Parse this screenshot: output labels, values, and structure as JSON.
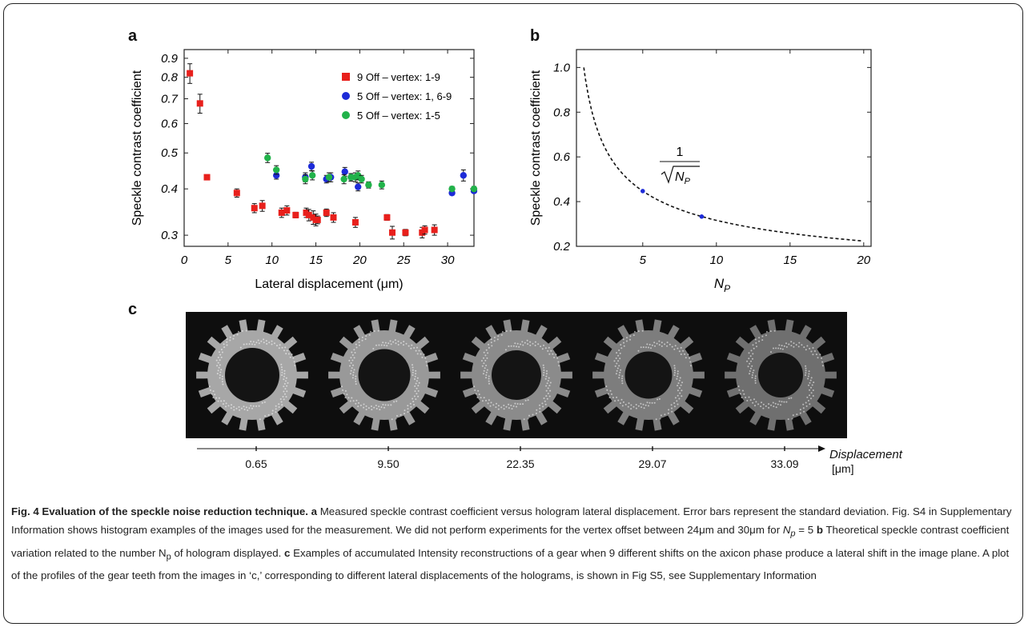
{
  "panels": {
    "a": "a",
    "b": "b",
    "c": "c"
  },
  "chart_data": [
    {
      "type": "scatter",
      "panel": "a",
      "xlabel": "Lateral displacement (μm)",
      "ylabel": "Speckle contrast coefficient",
      "xlim": [
        0,
        33
      ],
      "ylim": [
        0.28,
        0.95
      ],
      "y_scale": "log",
      "xticks": [
        "0",
        "5",
        "10",
        "15",
        "20",
        "25",
        "30"
      ],
      "yticks": [
        "0.3",
        "0.4",
        "0.5",
        "0.6",
        "0.7",
        "0.8",
        "0.9"
      ],
      "legend_position": "top-right",
      "series": [
        {
          "name": "9 Off – vertex: 1-9",
          "color": "#e8201c",
          "marker": "square",
          "x": [
            0.65,
            1.8,
            2.6,
            6.0,
            8.0,
            8.9,
            11.1,
            11.7,
            12.7,
            13.9,
            14.2,
            14.7,
            15.0,
            15.2,
            16.2,
            17.0,
            19.5,
            23.1,
            23.7,
            25.2,
            27.1,
            27.4,
            28.5
          ],
          "y": [
            0.82,
            0.68,
            0.43,
            0.39,
            0.355,
            0.36,
            0.345,
            0.35,
            0.34,
            0.345,
            0.34,
            0.335,
            0.33,
            0.33,
            0.345,
            0.335,
            0.325,
            0.335,
            0.305,
            0.305,
            0.305,
            0.31,
            0.31
          ],
          "err": [
            0.05,
            0.04,
            0.006,
            0.01,
            0.01,
            0.012,
            0.01,
            0.01,
            0.006,
            0.01,
            0.012,
            0.014,
            0.012,
            0.008,
            0.008,
            0.01,
            0.01,
            0.006,
            0.012,
            0.006,
            0.01,
            0.008,
            0.01
          ]
        },
        {
          "name": "5 Off – vertex: 1, 6-9",
          "color": "#1d2bd8",
          "marker": "circle",
          "x": [
            10.5,
            13.8,
            14.5,
            16.2,
            16.7,
            18.3,
            19.0,
            19.8,
            31.8,
            30.5,
            33.0
          ],
          "y": [
            0.435,
            0.43,
            0.46,
            0.425,
            0.43,
            0.445,
            0.43,
            0.405,
            0.435,
            0.39,
            0.395
          ],
          "err": [
            0.01,
            0.012,
            0.012,
            0.01,
            0.012,
            0.012,
            0.01,
            0.01,
            0.015,
            0.005,
            0.005
          ]
        },
        {
          "name": "5 Off – vertex: 1-5",
          "color": "#21b24a",
          "marker": "circle",
          "x": [
            9.5,
            10.5,
            13.8,
            14.6,
            16.5,
            18.2,
            19.0,
            19.5,
            19.8,
            20.2,
            21.0,
            22.5,
            30.5,
            33.0
          ],
          "y": [
            0.485,
            0.45,
            0.425,
            0.435,
            0.43,
            0.425,
            0.43,
            0.43,
            0.435,
            0.425,
            0.41,
            0.41,
            0.4,
            0.4
          ],
          "err": [
            0.014,
            0.012,
            0.012,
            0.012,
            0.012,
            0.012,
            0.01,
            0.012,
            0.012,
            0.01,
            0.008,
            0.01,
            0.006,
            0.006
          ]
        }
      ]
    },
    {
      "type": "line",
      "panel": "b",
      "xlabel": "N_P",
      "ylabel": "Speckle contrast coefficient",
      "xlim": [
        0.5,
        20.5
      ],
      "ylim": [
        0.2,
        1.08
      ],
      "xticks": [
        "5",
        "10",
        "15",
        "20"
      ],
      "yticks": [
        "0.2",
        "0.4",
        "0.6",
        "0.8",
        "1.0"
      ],
      "curve": "1/sqrt(N_P)",
      "annotation_numerator": "1",
      "annotation_radicand": "N",
      "annotation_subscript": "P",
      "points": {
        "x": [
          5,
          9
        ],
        "y": [
          0.447,
          0.333
        ],
        "color": "#1d2bd8"
      }
    }
  ],
  "gear_images": {
    "count": 5,
    "axis_label": "Displacement",
    "unit": "[μm]",
    "displacements": [
      "0.65",
      "9.50",
      "22.35",
      "29.07",
      "33.09"
    ]
  },
  "caption": {
    "title": "Fig. 4 Evaluation of the speckle noise reduction technique.",
    "a_label": "a",
    "a_text": "Measured speckle contrast coefficient versus hologram lateral displacement. Error bars represent the standard deviation. Fig. S4 in Supplementary Information shows histogram examples of the images used for the measurement. We did not perform experiments for the vertex offset between 24μm and 30μm for ",
    "a_tail": "N",
    "a_tail_sub": "p",
    "a_tail_eq": " = 5 ",
    "b_label": "b",
    "b_text": "Theoretical speckle contrast coefficient variation related to the number N",
    "b_sub": "p",
    "b_text2": " of hologram displayed. ",
    "c_label": "c",
    "c_text": "Examples of accumulated Intensity reconstructions of a gear when 9 different shifts on the axicon phase produce a lateral shift in the image plane. A plot of the profiles of the gear teeth from the images in ‘c,’ corresponding to different lateral displacements of the holograms, is shown in Fig S5, see Supplementary Information"
  }
}
